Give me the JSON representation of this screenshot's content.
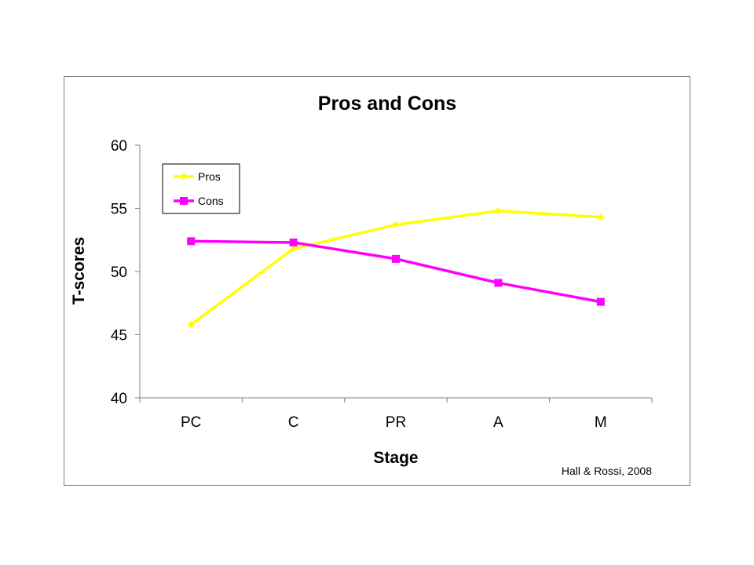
{
  "chart_data": {
    "type": "line",
    "title": "Pros and Cons",
    "xlabel": "Stage",
    "ylabel": "T-scores",
    "categories": [
      "PC",
      "C",
      "PR",
      "A",
      "M"
    ],
    "ylim": [
      40,
      60
    ],
    "yticks": [
      40,
      45,
      50,
      55,
      60
    ],
    "grid": false,
    "legend_position": "top-left",
    "series": [
      {
        "name": "Pros",
        "color": "#ffff00",
        "marker": "diamond",
        "values": [
          45.8,
          51.8,
          53.7,
          54.8,
          54.3
        ]
      },
      {
        "name": "Cons",
        "color": "#ff00ff",
        "marker": "square",
        "values": [
          52.4,
          52.3,
          51.0,
          49.1,
          47.6
        ]
      }
    ],
    "annotations": [
      "Hall & Rossi, 2008"
    ]
  }
}
